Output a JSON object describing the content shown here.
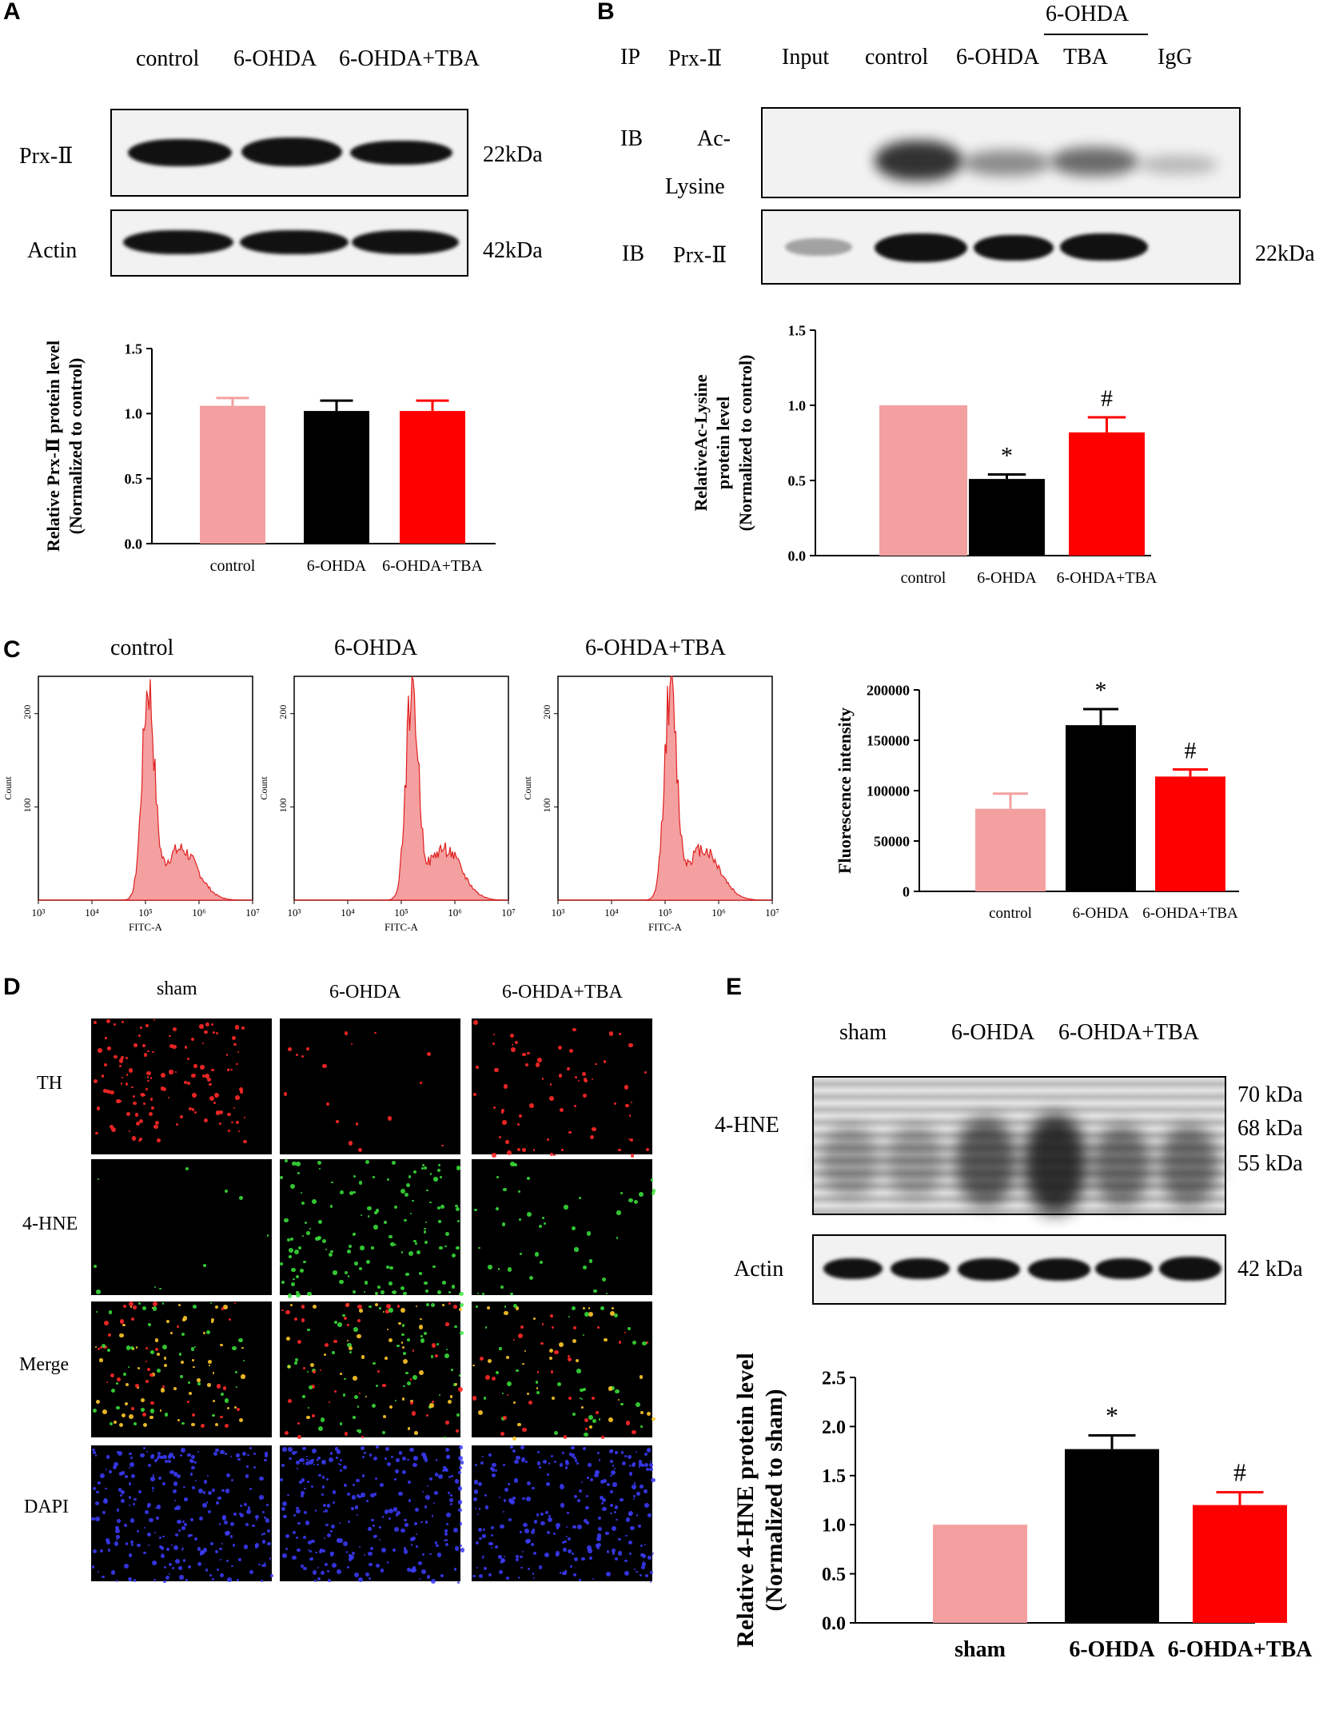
{
  "panels": {
    "A": {
      "letter": "A",
      "lanes": [
        "control",
        "6-OHDA",
        "6-OHDA+TBA"
      ],
      "blot_labels": [
        "Prx-Ⅱ",
        "Actin"
      ],
      "mw": [
        "22kDa",
        "42kDa"
      ]
    },
    "B": {
      "letter": "B",
      "ip_label": "IP",
      "ip_target": "Prx-Ⅱ",
      "lanes": [
        "Input",
        "control",
        "6-OHDA",
        "TBA",
        "IgG"
      ],
      "group_header": "6-OHDA",
      "ib1_label": "IB",
      "ib1_target_a": "Ac-",
      "ib1_target_b": "Lysine",
      "ib2_label": "IB",
      "ib2_target": "Prx-Ⅱ",
      "mw": "22kDa"
    },
    "C": {
      "letter": "C",
      "histogram_titles": [
        "control",
        "6-OHDA",
        "6-OHDA+TBA"
      ],
      "hist_ylabel": "Count",
      "hist_xlabel": "FITC-A",
      "hist_yticks": [
        "100",
        "200"
      ],
      "hist_xticks": [
        "10³",
        "10⁴",
        "10⁵",
        "10⁶",
        "10⁷"
      ]
    },
    "D": {
      "letter": "D",
      "columns": [
        "sham",
        "6-OHDA",
        "6-OHDA+TBA"
      ],
      "rows": [
        "TH",
        "4-HNE",
        "Merge",
        "DAPI"
      ]
    },
    "E": {
      "letter": "E",
      "lanes": [
        "sham",
        "6-OHDA",
        "6-OHDA+TBA"
      ],
      "blot_labels": [
        "4-HNE",
        "Actin"
      ],
      "mw": [
        "70 kDa",
        "68 kDa",
        "55 kDa",
        "42 kDa"
      ]
    }
  },
  "colors": {
    "control": "#f4a0a0",
    "ohda": "#000000",
    "tba": "#ff0000",
    "hist_fill": "#f4a0a0",
    "hist_line": "#e02020"
  },
  "chart_data": [
    {
      "id": "A",
      "type": "bar",
      "categories": [
        "control",
        "6-OHDA",
        "6-OHDA+TBA"
      ],
      "values": [
        1.06,
        1.02,
        1.02
      ],
      "errors": [
        0.06,
        0.08,
        0.08
      ],
      "ylabel_line1": "Relative Prx-Ⅱ  protein level",
      "ylabel_line2": "(Normalized to control)",
      "ylim": [
        0,
        1.5
      ],
      "yticks": [
        "0.0",
        "0.5",
        "1.0",
        "1.5"
      ],
      "annotations": [
        "",
        "",
        ""
      ]
    },
    {
      "id": "B",
      "type": "bar",
      "categories": [
        "control",
        "6-OHDA",
        "6-OHDA+TBA"
      ],
      "values": [
        1.0,
        0.51,
        0.82
      ],
      "errors": [
        0.0,
        0.03,
        0.1
      ],
      "ylabel_line1": "RelativeAc-Lysine",
      "ylabel_line2": "protein level",
      "ylabel_line3": "(Normalized to control)",
      "ylim": [
        0,
        1.5
      ],
      "yticks": [
        "0.0",
        "0.5",
        "1.0",
        "1.5"
      ],
      "annotations": [
        "",
        "*",
        "#"
      ]
    },
    {
      "id": "C",
      "type": "bar",
      "categories": [
        "control",
        "6-OHDA",
        "6-OHDA+TBA"
      ],
      "values": [
        82000,
        165000,
        114000
      ],
      "errors": [
        15000,
        16000,
        7000
      ],
      "ylabel_line1": "Fluorescence intensity",
      "ylim": [
        0,
        200000
      ],
      "yticks": [
        "0",
        "50000",
        "100000",
        "150000",
        "200000"
      ],
      "annotations": [
        "",
        "*",
        "#"
      ]
    },
    {
      "id": "E",
      "type": "bar",
      "categories": [
        "sham",
        "6-OHDA",
        "6-OHDA+TBA"
      ],
      "values": [
        1.0,
        1.77,
        1.2
      ],
      "errors": [
        0.0,
        0.14,
        0.13
      ],
      "ylabel_line1": "Relative 4-HNE  protein level",
      "ylabel_line2": "(Normalized to sham)",
      "ylim": [
        0,
        2.5
      ],
      "yticks": [
        "0.0",
        "0.5",
        "1.0",
        "1.5",
        "2.0",
        "2.5"
      ],
      "annotations": [
        "",
        "*",
        "#"
      ]
    }
  ]
}
